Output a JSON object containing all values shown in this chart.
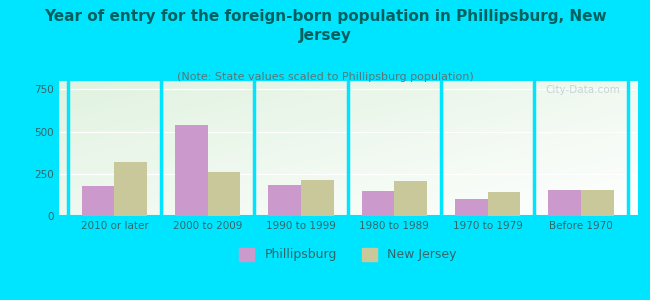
{
  "title": "Year of entry for the foreign-born population in Phillipsburg, New\nJersey",
  "subtitle": "(Note: State values scaled to Phillipsburg population)",
  "categories": [
    "2010 or later",
    "2000 to 2009",
    "1990 to 1999",
    "1980 to 1989",
    "1970 to 1979",
    "Before 1970"
  ],
  "phillipsburg_values": [
    175,
    540,
    185,
    150,
    100,
    155
  ],
  "newjersey_values": [
    320,
    258,
    215,
    205,
    145,
    155
  ],
  "phillipsburg_color": "#cc99cc",
  "newjersey_color": "#c8c89a",
  "background_color": "#00e5ff",
  "title_color": "#006060",
  "subtitle_color": "#557777",
  "tick_color": "#336666",
  "ylim": [
    0,
    800
  ],
  "yticks": [
    0,
    250,
    500,
    750
  ],
  "watermark": "City-Data.com",
  "legend_phillipsburg": "Phillipsburg",
  "legend_newjersey": "New Jersey",
  "bar_width": 0.35,
  "title_fontsize": 11,
  "subtitle_fontsize": 8,
  "tick_fontsize": 7.5,
  "legend_fontsize": 9
}
